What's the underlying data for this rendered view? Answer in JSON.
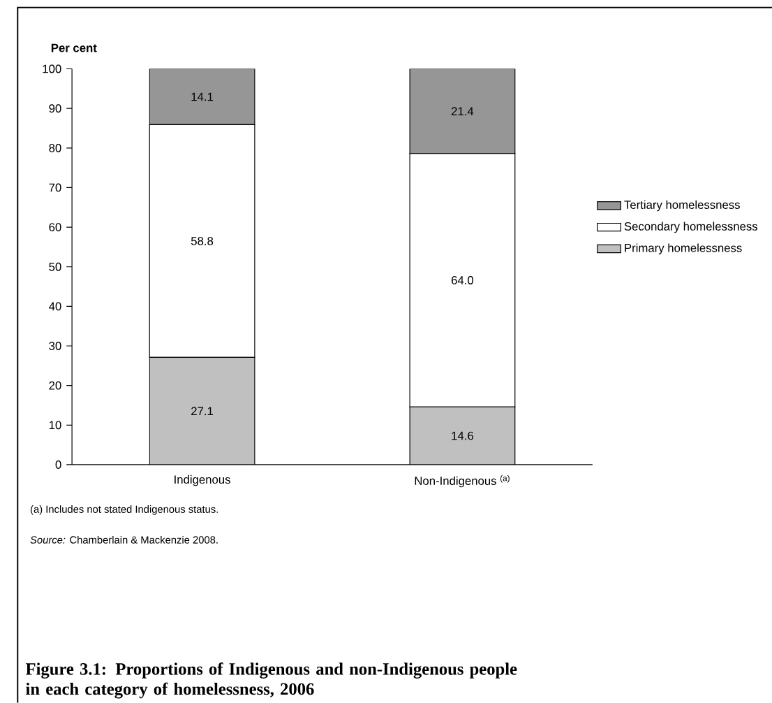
{
  "chart_data": {
    "type": "bar",
    "stacked": true,
    "title": "Figure 3.1: Proportions of Indigenous and non-Indigenous people in each category of homelessness, 2006",
    "ylabel": "Per cent",
    "categories": [
      "Indigenous",
      "Non-Indigenous $^{(a)}$"
    ],
    "series": [
      {
        "name": "Primary homelessness",
        "color": "#c0c0c0",
        "values": [
          27.1,
          14.6
        ],
        "value_labels": [
          "27.1",
          "14.6"
        ]
      },
      {
        "name": "Secondary homelessness",
        "color": "#ffffff",
        "values": [
          58.8,
          64.0
        ],
        "value_labels": [
          "58.8",
          "64.0"
        ]
      },
      {
        "name": "Tertiary homelessness",
        "color": "#969696",
        "values": [
          14.1,
          21.4
        ],
        "value_labels": [
          "14.1",
          "21.4"
        ]
      }
    ],
    "ylim": [
      0,
      100
    ],
    "yticks": [
      0,
      10,
      20,
      30,
      40,
      50,
      60,
      70,
      80,
      90,
      100
    ],
    "legend": "right",
    "annotations": [
      "(a) Includes not stated Indigenous status.",
      "*Source:* Chamberlain & Mackenzie 2008."
    ]
  }
}
